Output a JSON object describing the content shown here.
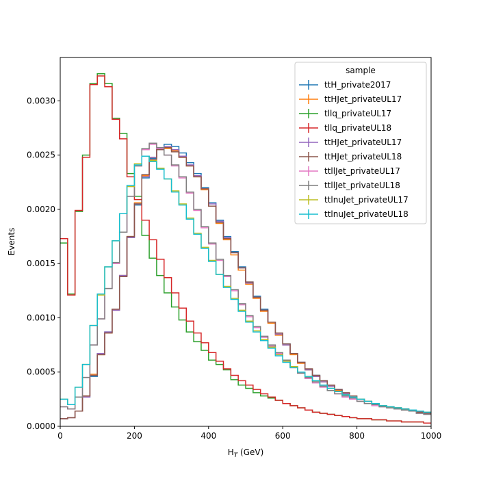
{
  "chart_data": {
    "type": "line",
    "title": "",
    "xlabel_main": "H",
    "xlabel_sub": "T",
    "xlabel_unit": " (GeV)",
    "ylabel": "Events",
    "xlim": [
      0,
      1000
    ],
    "ylim": [
      0,
      0.0034
    ],
    "grid": false,
    "legend_title": "sample",
    "legend_position": "top-right",
    "x_ticks": [
      "0",
      "200",
      "400",
      "600",
      "800",
      "1000"
    ],
    "y_ticks": [
      "0.0000",
      "0.0005",
      "0.0010",
      "0.0015",
      "0.0020",
      "0.0025",
      "0.0030"
    ],
    "bin_edges": [
      0,
      20,
      40,
      60,
      80,
      100,
      120,
      140,
      160,
      180,
      200,
      220,
      240,
      260,
      280,
      300,
      320,
      340,
      360,
      380,
      400,
      420,
      440,
      460,
      480,
      500,
      520,
      540,
      560,
      580,
      600,
      620,
      640,
      660,
      680,
      700,
      720,
      740,
      760,
      780,
      800,
      820,
      840,
      860,
      880,
      900,
      920,
      940,
      960,
      980,
      1000
    ],
    "series": [
      {
        "name": "ttH_private2017",
        "color": "#1f77b4",
        "values": [
          7e-05,
          8e-05,
          0.00014,
          0.00027,
          0.00046,
          0.00067,
          0.00087,
          0.00108,
          0.00139,
          0.00174,
          0.00204,
          0.00229,
          0.00247,
          0.00256,
          0.0026,
          0.00258,
          0.00252,
          0.00243,
          0.00233,
          0.0022,
          0.00206,
          0.0019,
          0.00175,
          0.00161,
          0.00147,
          0.00133,
          0.0012,
          0.00108,
          0.00096,
          0.00085,
          0.00076,
          0.00067,
          0.00059,
          0.00052,
          0.00047,
          0.00042,
          0.00037,
          0.00034,
          0.0003,
          0.00027,
          0.00025,
          0.00023,
          0.00021,
          0.00019,
          0.00018,
          0.00017,
          0.00016,
          0.00015,
          0.00013,
          0.00012
        ]
      },
      {
        "name": "ttHJet_privateUL17",
        "color": "#ff7f0e",
        "values": [
          7e-05,
          8e-05,
          0.00014,
          0.00028,
          0.00048,
          0.00066,
          0.00086,
          0.00107,
          0.00139,
          0.00175,
          0.00206,
          0.00231,
          0.00248,
          0.00255,
          0.00256,
          0.00254,
          0.00248,
          0.0024,
          0.0023,
          0.00218,
          0.00203,
          0.00187,
          0.00172,
          0.00158,
          0.00144,
          0.00131,
          0.00118,
          0.00106,
          0.00095,
          0.00084,
          0.00075,
          0.00066,
          0.00058,
          0.00052,
          0.00046,
          0.00041,
          0.00037,
          0.00033,
          0.0003,
          0.00027,
          0.00025,
          0.00023,
          0.00021,
          0.00019,
          0.00018,
          0.00017,
          0.00016,
          0.00015,
          0.00013,
          0.00012
        ]
      },
      {
        "name": "tllq_privateUL17",
        "color": "#2ca02c",
        "values": [
          0.00169,
          0.00122,
          0.00198,
          0.0025,
          0.00316,
          0.00325,
          0.00316,
          0.00284,
          0.0027,
          0.00233,
          0.00212,
          0.00176,
          0.00155,
          0.00139,
          0.00123,
          0.0011,
          0.00098,
          0.00087,
          0.00078,
          0.0007,
          0.00061,
          0.00057,
          0.00052,
          0.00043,
          0.00038,
          0.00035,
          0.00031,
          0.00028,
          0.00026,
          0.00024,
          0.00021,
          0.00019,
          0.00017,
          0.00015,
          0.00013,
          0.00012,
          0.00011,
          0.0001,
          9e-05,
          8e-05,
          7e-05,
          7e-05,
          6e-05,
          6e-05,
          5e-05,
          5e-05,
          4e-05,
          4e-05,
          4e-05,
          3e-05
        ]
      },
      {
        "name": "tllq_privateUL18",
        "color": "#d62728",
        "values": [
          0.00173,
          0.00121,
          0.00199,
          0.00248,
          0.00315,
          0.00323,
          0.00313,
          0.00283,
          0.00265,
          0.0023,
          0.00209,
          0.0019,
          0.00172,
          0.00154,
          0.00137,
          0.00123,
          0.00109,
          0.00097,
          0.00086,
          0.00077,
          0.00068,
          0.0006,
          0.00053,
          0.00047,
          0.00042,
          0.00038,
          0.00034,
          0.0003,
          0.00027,
          0.00024,
          0.00021,
          0.00019,
          0.00017,
          0.00015,
          0.00013,
          0.00012,
          0.00011,
          0.0001,
          9e-05,
          8e-05,
          7e-05,
          7e-05,
          6e-05,
          6e-05,
          5e-05,
          5e-05,
          4e-05,
          4e-05,
          4e-05,
          3e-05
        ]
      },
      {
        "name": "ttHJet_privateUL17",
        "color": "#9467bd",
        "values": [
          7e-05,
          8e-05,
          0.00014,
          0.00027,
          0.00047,
          0.00067,
          0.00087,
          0.00107,
          0.00139,
          0.00174,
          0.00205,
          0.0023,
          0.00248,
          0.00256,
          0.00258,
          0.00255,
          0.00249,
          0.00241,
          0.00231,
          0.00219,
          0.00205,
          0.00189,
          0.00174,
          0.0016,
          0.00146,
          0.00132,
          0.00119,
          0.00107,
          0.00096,
          0.00085,
          0.00075,
          0.00067,
          0.00059,
          0.00052,
          0.00046,
          0.00041,
          0.00037,
          0.00034,
          0.0003,
          0.00027,
          0.00025,
          0.00023,
          0.00021,
          0.00019,
          0.00018,
          0.00017,
          0.00016,
          0.00015,
          0.00013,
          0.00012
        ]
      },
      {
        "name": "ttHJet_privateUL18",
        "color": "#8c564b",
        "values": [
          7e-05,
          8e-05,
          0.00014,
          0.00028,
          0.00047,
          0.00066,
          0.00086,
          0.00108,
          0.00138,
          0.00175,
          0.00205,
          0.00232,
          0.00246,
          0.00255,
          0.00257,
          0.00253,
          0.00248,
          0.0024,
          0.0023,
          0.00219,
          0.00203,
          0.00188,
          0.00173,
          0.0016,
          0.00146,
          0.00133,
          0.00119,
          0.00107,
          0.00096,
          0.00086,
          0.00076,
          0.00067,
          0.00059,
          0.00053,
          0.00047,
          0.00042,
          0.00038,
          0.00034,
          0.00031,
          0.00028,
          0.00025,
          0.00023,
          0.00021,
          0.00019,
          0.00018,
          0.00017,
          0.00016,
          0.00015,
          0.00013,
          0.00012
        ]
      },
      {
        "name": "ttllJet_privateUL17",
        "color": "#e377c2",
        "values": [
          0.00018,
          0.00016,
          0.00027,
          0.00045,
          0.00075,
          0.00099,
          0.00127,
          0.0015,
          0.00179,
          0.00212,
          0.0024,
          0.00255,
          0.0026,
          0.00256,
          0.0025,
          0.0024,
          0.00229,
          0.00215,
          0.00199,
          0.00183,
          0.00168,
          0.00153,
          0.00138,
          0.00125,
          0.00112,
          0.00101,
          0.00091,
          0.00082,
          0.00074,
          0.00067,
          0.0006,
          0.00054,
          0.00049,
          0.00044,
          0.0004,
          0.00036,
          0.00033,
          0.0003,
          0.00027,
          0.00025,
          0.00023,
          0.00021,
          0.00019,
          0.00018,
          0.00017,
          0.00016,
          0.00015,
          0.00014,
          0.00012,
          0.00011
        ]
      },
      {
        "name": "ttllJet_privateUL18",
        "color": "#7f7f7f",
        "values": [
          0.00018,
          0.00016,
          0.00027,
          0.00045,
          0.00075,
          0.00099,
          0.00127,
          0.00151,
          0.00179,
          0.00212,
          0.0024,
          0.00256,
          0.00261,
          0.00257,
          0.0025,
          0.00241,
          0.0023,
          0.00216,
          0.002,
          0.00184,
          0.00169,
          0.00154,
          0.00139,
          0.00126,
          0.00113,
          0.00102,
          0.00092,
          0.00083,
          0.00075,
          0.00068,
          0.00061,
          0.00055,
          0.00049,
          0.00045,
          0.00041,
          0.00037,
          0.00033,
          0.0003,
          0.00028,
          0.00026,
          0.00023,
          0.00021,
          0.0002,
          0.00018,
          0.00017,
          0.00016,
          0.00015,
          0.00014,
          0.00012,
          0.00011
        ]
      },
      {
        "name": "ttlnuJet_privateUL17",
        "color": "#bcbd22",
        "values": [
          0.00025,
          0.0002,
          0.00036,
          0.00057,
          0.00093,
          0.00121,
          0.00147,
          0.00171,
          0.00196,
          0.00221,
          0.00242,
          0.00249,
          0.00245,
          0.00238,
          0.00228,
          0.00217,
          0.00205,
          0.00192,
          0.00178,
          0.00165,
          0.00153,
          0.0014,
          0.00129,
          0.00118,
          0.00107,
          0.00097,
          0.00088,
          0.0008,
          0.00073,
          0.00066,
          0.0006,
          0.00055,
          0.0005,
          0.00046,
          0.00042,
          0.00038,
          0.00035,
          0.00032,
          0.00029,
          0.00027,
          0.00025,
          0.00023,
          0.00021,
          0.00019,
          0.00018,
          0.00017,
          0.00016,
          0.00015,
          0.00014,
          0.00013
        ]
      },
      {
        "name": "ttlnuJet_privateUL18",
        "color": "#17becf",
        "values": [
          0.00025,
          0.0002,
          0.00036,
          0.00057,
          0.00093,
          0.00122,
          0.00147,
          0.00171,
          0.00196,
          0.00222,
          0.00241,
          0.00249,
          0.00244,
          0.00237,
          0.00228,
          0.00216,
          0.00204,
          0.00191,
          0.00177,
          0.00164,
          0.00152,
          0.0014,
          0.00128,
          0.00117,
          0.00106,
          0.00096,
          0.00087,
          0.00079,
          0.00072,
          0.00065,
          0.00059,
          0.00054,
          0.0005,
          0.00046,
          0.00042,
          0.00038,
          0.00035,
          0.00032,
          0.00029,
          0.00027,
          0.00025,
          0.00023,
          0.00021,
          0.00019,
          0.00018,
          0.00017,
          0.00016,
          0.00015,
          0.00014,
          0.00013
        ]
      }
    ]
  }
}
